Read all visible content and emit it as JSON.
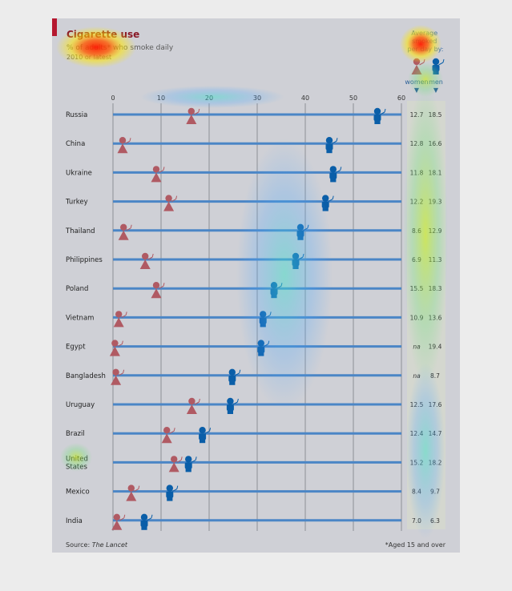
{
  "chart_data": {
    "type": "scatter",
    "title": "Cigarette use",
    "subtitle": "% of adults* who smoke daily",
    "subtitle2": "2010 or latest",
    "legend_title": "Average smoked per day by:",
    "legend_women": "women",
    "legend_men": "men",
    "xlim": [
      0,
      60
    ],
    "ticks": [
      "0",
      "10",
      "20",
      "30",
      "40",
      "50",
      "60"
    ],
    "grid": true,
    "source_label": "Source:",
    "source_name": "The Lancet",
    "footnote": "*Aged 15 and over",
    "colors": {
      "women": "#b05a63",
      "men": "#0a5ea8",
      "bar": "#4b86c6",
      "panel": "#d6d7d2"
    },
    "rows": [
      {
        "country": "Russia",
        "women": 16.3,
        "men": 55.0,
        "avg_women": "12.7",
        "avg_men": "18.5"
      },
      {
        "country": "China",
        "women": 2.0,
        "men": 45.0,
        "avg_women": "12.8",
        "avg_men": "16.6"
      },
      {
        "country": "Ukraine",
        "women": 9.0,
        "men": 45.8,
        "avg_women": "11.8",
        "avg_men": "18.1"
      },
      {
        "country": "Turkey",
        "women": 11.6,
        "men": 44.2,
        "avg_women": "12.2",
        "avg_men": "19.3"
      },
      {
        "country": "Thailand",
        "women": 2.2,
        "men": 39.0,
        "avg_women": "8.6",
        "avg_men": "12.9"
      },
      {
        "country": "Philippines",
        "women": 6.7,
        "men": 38.0,
        "avg_women": "6.9",
        "avg_men": "11.3"
      },
      {
        "country": "Poland",
        "women": 9.0,
        "men": 33.5,
        "avg_women": "15.5",
        "avg_men": "18.3"
      },
      {
        "country": "Vietnam",
        "women": 1.2,
        "men": 31.2,
        "avg_women": "10.9",
        "avg_men": "13.6"
      },
      {
        "country": "Egypt",
        "women": 0.4,
        "men": 30.8,
        "avg_women": "na",
        "avg_men": "19.4"
      },
      {
        "country": "Bangladesh",
        "women": 0.6,
        "men": 24.8,
        "avg_women": "na",
        "avg_men": "8.7"
      },
      {
        "country": "Uruguay",
        "women": 16.4,
        "men": 24.4,
        "avg_women": "12.5",
        "avg_men": "17.6"
      },
      {
        "country": "Brazil",
        "women": 11.2,
        "men": 18.6,
        "avg_women": "12.4",
        "avg_men": "14.7"
      },
      {
        "country": [
          "United",
          "States"
        ],
        "women": 12.7,
        "men": 15.7,
        "avg_women": "15.2",
        "avg_men": "18.2"
      },
      {
        "country": "Mexico",
        "women": 3.8,
        "men": 11.8,
        "avg_women": "8.4",
        "avg_men": "9.7"
      },
      {
        "country": "India",
        "women": 0.8,
        "men": 6.5,
        "avg_women": "7.0",
        "avg_men": "6.3"
      }
    ]
  }
}
